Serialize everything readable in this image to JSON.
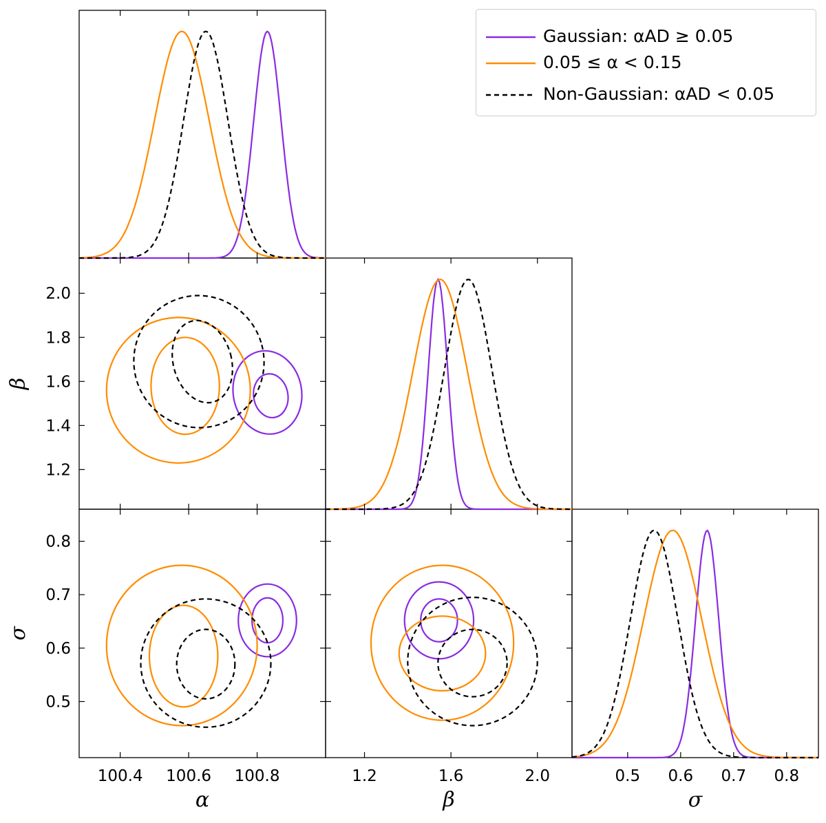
{
  "colors": {
    "gaussian": "#8a2be2",
    "mid": "#ff8c00",
    "nongaussian": "#000000"
  },
  "legend": {
    "placement": "top-right",
    "entries": [
      {
        "label": "Gaussian: αAD ≥ 0.05",
        "style": "solid",
        "color": "#8a2be2"
      },
      {
        "label": "0.05 ≤ α < 0.15",
        "style": "solid",
        "color": "#ff8c00"
      },
      {
        "label": "Non-Gaussian: αAD < 0.05",
        "style": "dashed",
        "color": "#000000"
      }
    ]
  },
  "chart_data": {
    "type": "corner",
    "parameters": [
      "α",
      "β",
      "σ"
    ],
    "axes": {
      "alpha": {
        "label": "α",
        "range": [
          100.28,
          101.0
        ],
        "ticks": [
          100.4,
          100.6,
          100.8
        ],
        "tick_labels": [
          "100.4",
          "100.6",
          "100.8"
        ]
      },
      "beta": {
        "label": "β",
        "range": [
          1.02,
          2.16
        ],
        "ticks": [
          1.2,
          1.4,
          1.6,
          1.8,
          2.0
        ],
        "tick_labels": [
          "1.2",
          "1.4",
          "1.6",
          "1.8",
          "2.0"
        ],
        "x_ticks": [
          1.2,
          1.6,
          2.0
        ],
        "x_tick_labels": [
          "1.2",
          "1.6",
          "2.0"
        ]
      },
      "sigma": {
        "label": "σ",
        "range": [
          0.395,
          0.86
        ],
        "ticks": [
          0.5,
          0.6,
          0.7,
          0.8
        ],
        "tick_labels": [
          "0.5",
          "0.6",
          "0.7",
          "0.8"
        ]
      }
    },
    "series": [
      {
        "name": "Gaussian",
        "key": "gaussian",
        "style": "solid",
        "mean": {
          "alpha": 100.83,
          "beta": 1.54,
          "sigma": 0.65
        },
        "sd": {
          "alpha": 0.04,
          "beta": 0.045,
          "sigma": 0.022
        },
        "contours": {
          "alpha_beta": [
            {
              "cx": 100.84,
              "cy": 1.535,
              "rx": 0.05,
              "ry": 0.1,
              "angle": -10
            },
            {
              "cx": 100.83,
              "cy": 1.55,
              "rx": 0.1,
              "ry": 0.19,
              "angle": -10
            }
          ],
          "alpha_sigma": [
            {
              "cx": 100.83,
              "cy": 0.652,
              "rx": 0.045,
              "ry": 0.042,
              "angle": 0
            },
            {
              "cx": 100.83,
              "cy": 0.652,
              "rx": 0.085,
              "ry": 0.068,
              "angle": 0
            }
          ],
          "beta_sigma": [
            {
              "cx": 1.545,
              "cy": 0.652,
              "rx": 0.085,
              "ry": 0.04,
              "angle": 0
            },
            {
              "cx": 1.545,
              "cy": 0.652,
              "rx": 0.16,
              "ry": 0.072,
              "angle": 0
            }
          ]
        }
      },
      {
        "name": "0.05 ≤ α < 0.15",
        "key": "mid",
        "style": "solid",
        "mean": {
          "alpha": 100.58,
          "beta": 1.55,
          "sigma": 0.585
        },
        "sd": {
          "alpha": 0.08,
          "beta": 0.125,
          "sigma": 0.055
        },
        "contours": {
          "alpha_beta": [
            {
              "cx": 100.59,
              "cy": 1.58,
              "rx": 0.1,
              "ry": 0.22,
              "angle": 0
            },
            {
              "cx": 100.57,
              "cy": 1.56,
              "rx": 0.21,
              "ry": 0.33,
              "angle": 0
            }
          ],
          "alpha_sigma": [
            {
              "cx": 100.585,
              "cy": 0.585,
              "rx": 0.1,
              "ry": 0.095,
              "angle": 0
            },
            {
              "cx": 100.58,
              "cy": 0.605,
              "rx": 0.22,
              "ry": 0.15,
              "angle": 0
            }
          ],
          "beta_sigma": [
            {
              "cx": 1.56,
              "cy": 0.59,
              "rx": 0.2,
              "ry": 0.07,
              "angle": 0
            },
            {
              "cx": 1.56,
              "cy": 0.61,
              "rx": 0.33,
              "ry": 0.145,
              "angle": 0
            }
          ]
        }
      },
      {
        "name": "Non-Gaussian",
        "key": "nongaussian",
        "style": "dashed",
        "mean": {
          "alpha": 100.65,
          "beta": 1.68,
          "sigma": 0.55
        },
        "sd": {
          "alpha": 0.065,
          "beta": 0.11,
          "sigma": 0.045
        },
        "contours": {
          "alpha_beta": [
            {
              "cx": 100.64,
              "cy": 1.69,
              "rx": 0.085,
              "ry": 0.19,
              "angle": -15
            },
            {
              "cx": 100.63,
              "cy": 1.69,
              "rx": 0.19,
              "ry": 0.3,
              "angle": -15
            }
          ],
          "alpha_sigma": [
            {
              "cx": 100.65,
              "cy": 0.57,
              "rx": 0.085,
              "ry": 0.065,
              "angle": 0
            },
            {
              "cx": 100.65,
              "cy": 0.572,
              "rx": 0.19,
              "ry": 0.12,
              "angle": 0
            }
          ],
          "beta_sigma": [
            {
              "cx": 1.7,
              "cy": 0.572,
              "rx": 0.16,
              "ry": 0.063,
              "angle": 0
            },
            {
              "cx": 1.7,
              "cy": 0.575,
              "rx": 0.3,
              "ry": 0.12,
              "angle": 0
            }
          ]
        }
      }
    ]
  }
}
